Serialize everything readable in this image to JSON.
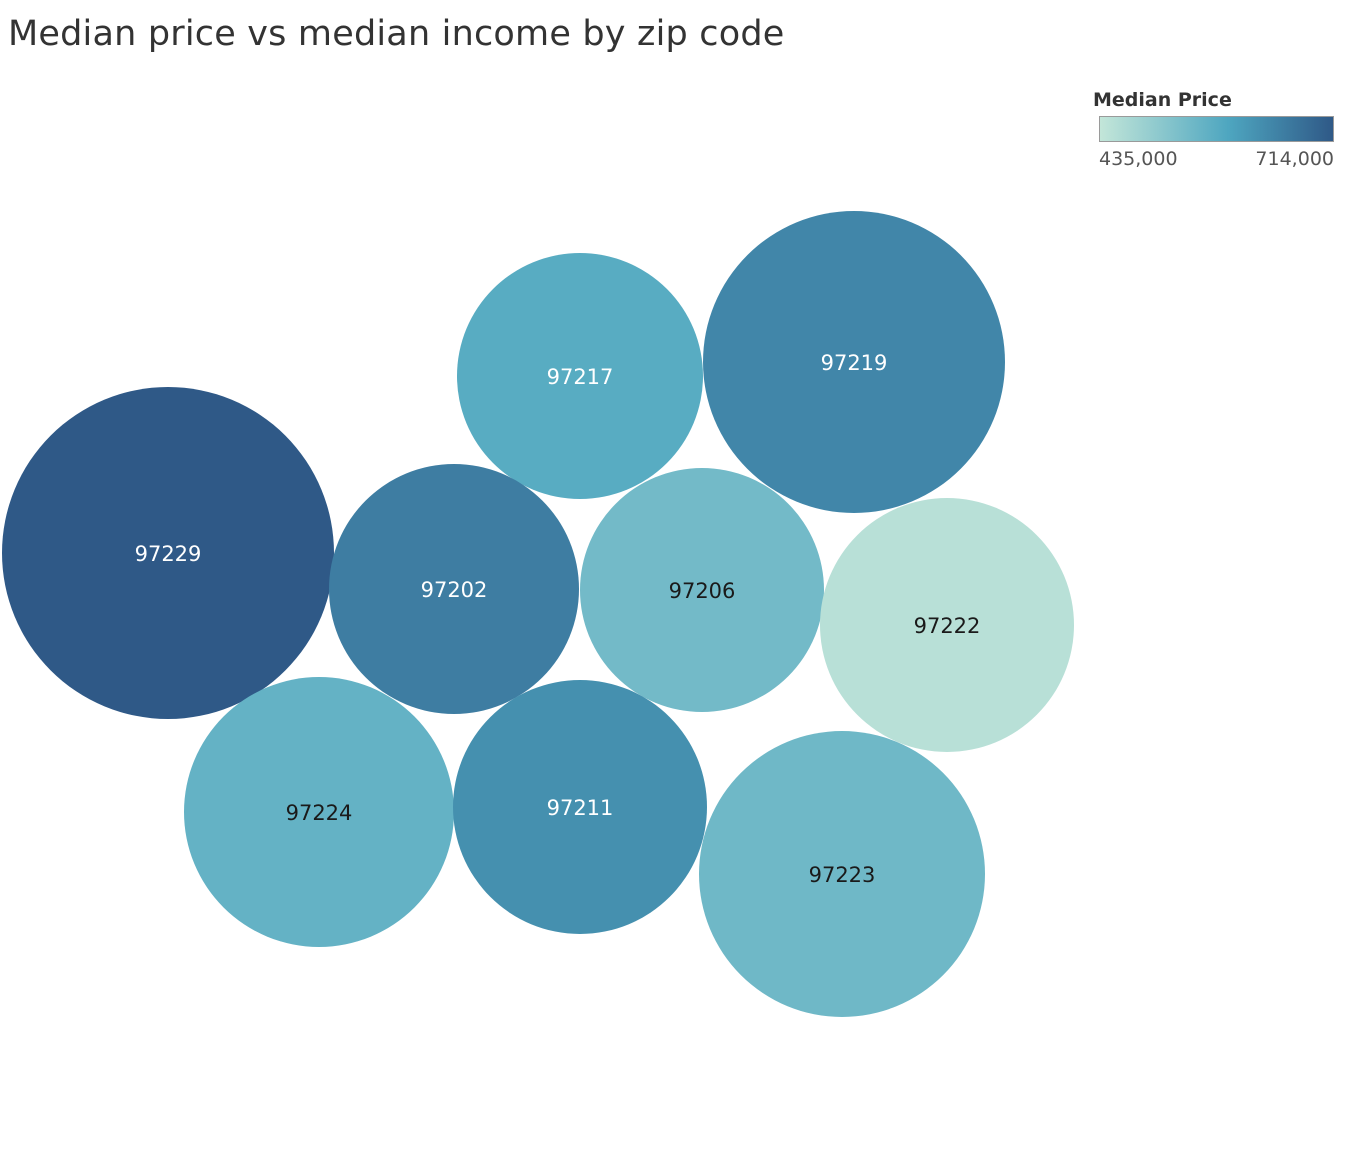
{
  "chart_data": {
    "type": "packed-bubble",
    "title": "Median price vs median income by zip code",
    "legend": {
      "title": "Median Price",
      "min": 435000,
      "max": 714000,
      "min_label": "435,000",
      "max_label": "714,000",
      "placement": "top-right"
    },
    "color_ramp": [
      "#c3e6d9",
      "#4ea6c0",
      "#2f5987"
    ],
    "bubbles": [
      {
        "zip": "97229",
        "median_price": 714000
      },
      {
        "zip": "97219",
        "median_price": 640000
      },
      {
        "zip": "97217",
        "median_price": 575000
      },
      {
        "zip": "97202",
        "median_price": 655000
      },
      {
        "zip": "97206",
        "median_price": 540000
      },
      {
        "zip": "97222",
        "median_price": 450000
      },
      {
        "zip": "97224",
        "median_price": 560000
      },
      {
        "zip": "97211",
        "median_price": 625000
      },
      {
        "zip": "97223",
        "median_price": 545000
      }
    ]
  }
}
